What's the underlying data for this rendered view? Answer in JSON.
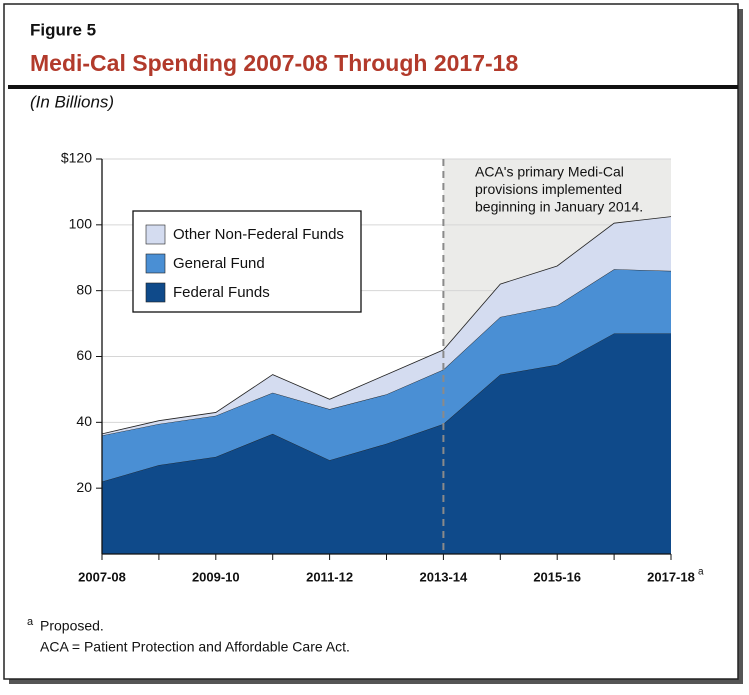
{
  "header": {
    "figure": "Figure 5",
    "title": "Medi-Cal Spending 2007-08 Through 2017-18",
    "subtitle": "(In Billions)"
  },
  "chart_data": {
    "type": "area",
    "stacked": true,
    "categories": [
      "2007-08",
      null,
      "2009-10",
      null,
      "2011-12",
      null,
      "2013-14",
      null,
      "2015-16",
      null,
      "2017-18"
    ],
    "x_label_note": "a",
    "series": [
      {
        "name": "Federal Funds",
        "color": "#0f4a8a",
        "values": [
          22,
          27,
          29.5,
          36.5,
          28.5,
          33.5,
          39.5,
          54.5,
          57.5,
          67,
          67
        ]
      },
      {
        "name": "General Fund",
        "color": "#4a8fd4",
        "values": [
          14,
          12.5,
          12.5,
          12.5,
          15.5,
          15,
          16.5,
          17.5,
          18,
          19.5,
          19
        ]
      },
      {
        "name": "Other Non-Federal Funds",
        "color": "#d4dcf0",
        "values": [
          0.5,
          1,
          1,
          5.5,
          3,
          6,
          6,
          10,
          12,
          14,
          16.5
        ]
      }
    ],
    "ylim": [
      0,
      120
    ],
    "yticks": [
      20,
      40,
      60,
      80,
      100,
      {
        "value": 120,
        "label": "$120"
      }
    ],
    "grid": true,
    "legend": "upper left",
    "shaded_from_index": 6,
    "annotation": [
      "ACA's primary Medi-Cal",
      "provisions implemented",
      "beginning in January 2014."
    ]
  },
  "footnotes": {
    "note_mark": "a",
    "note": "Proposed.",
    "abbrev": "ACA = Patient Protection and Affordable Care Act."
  }
}
